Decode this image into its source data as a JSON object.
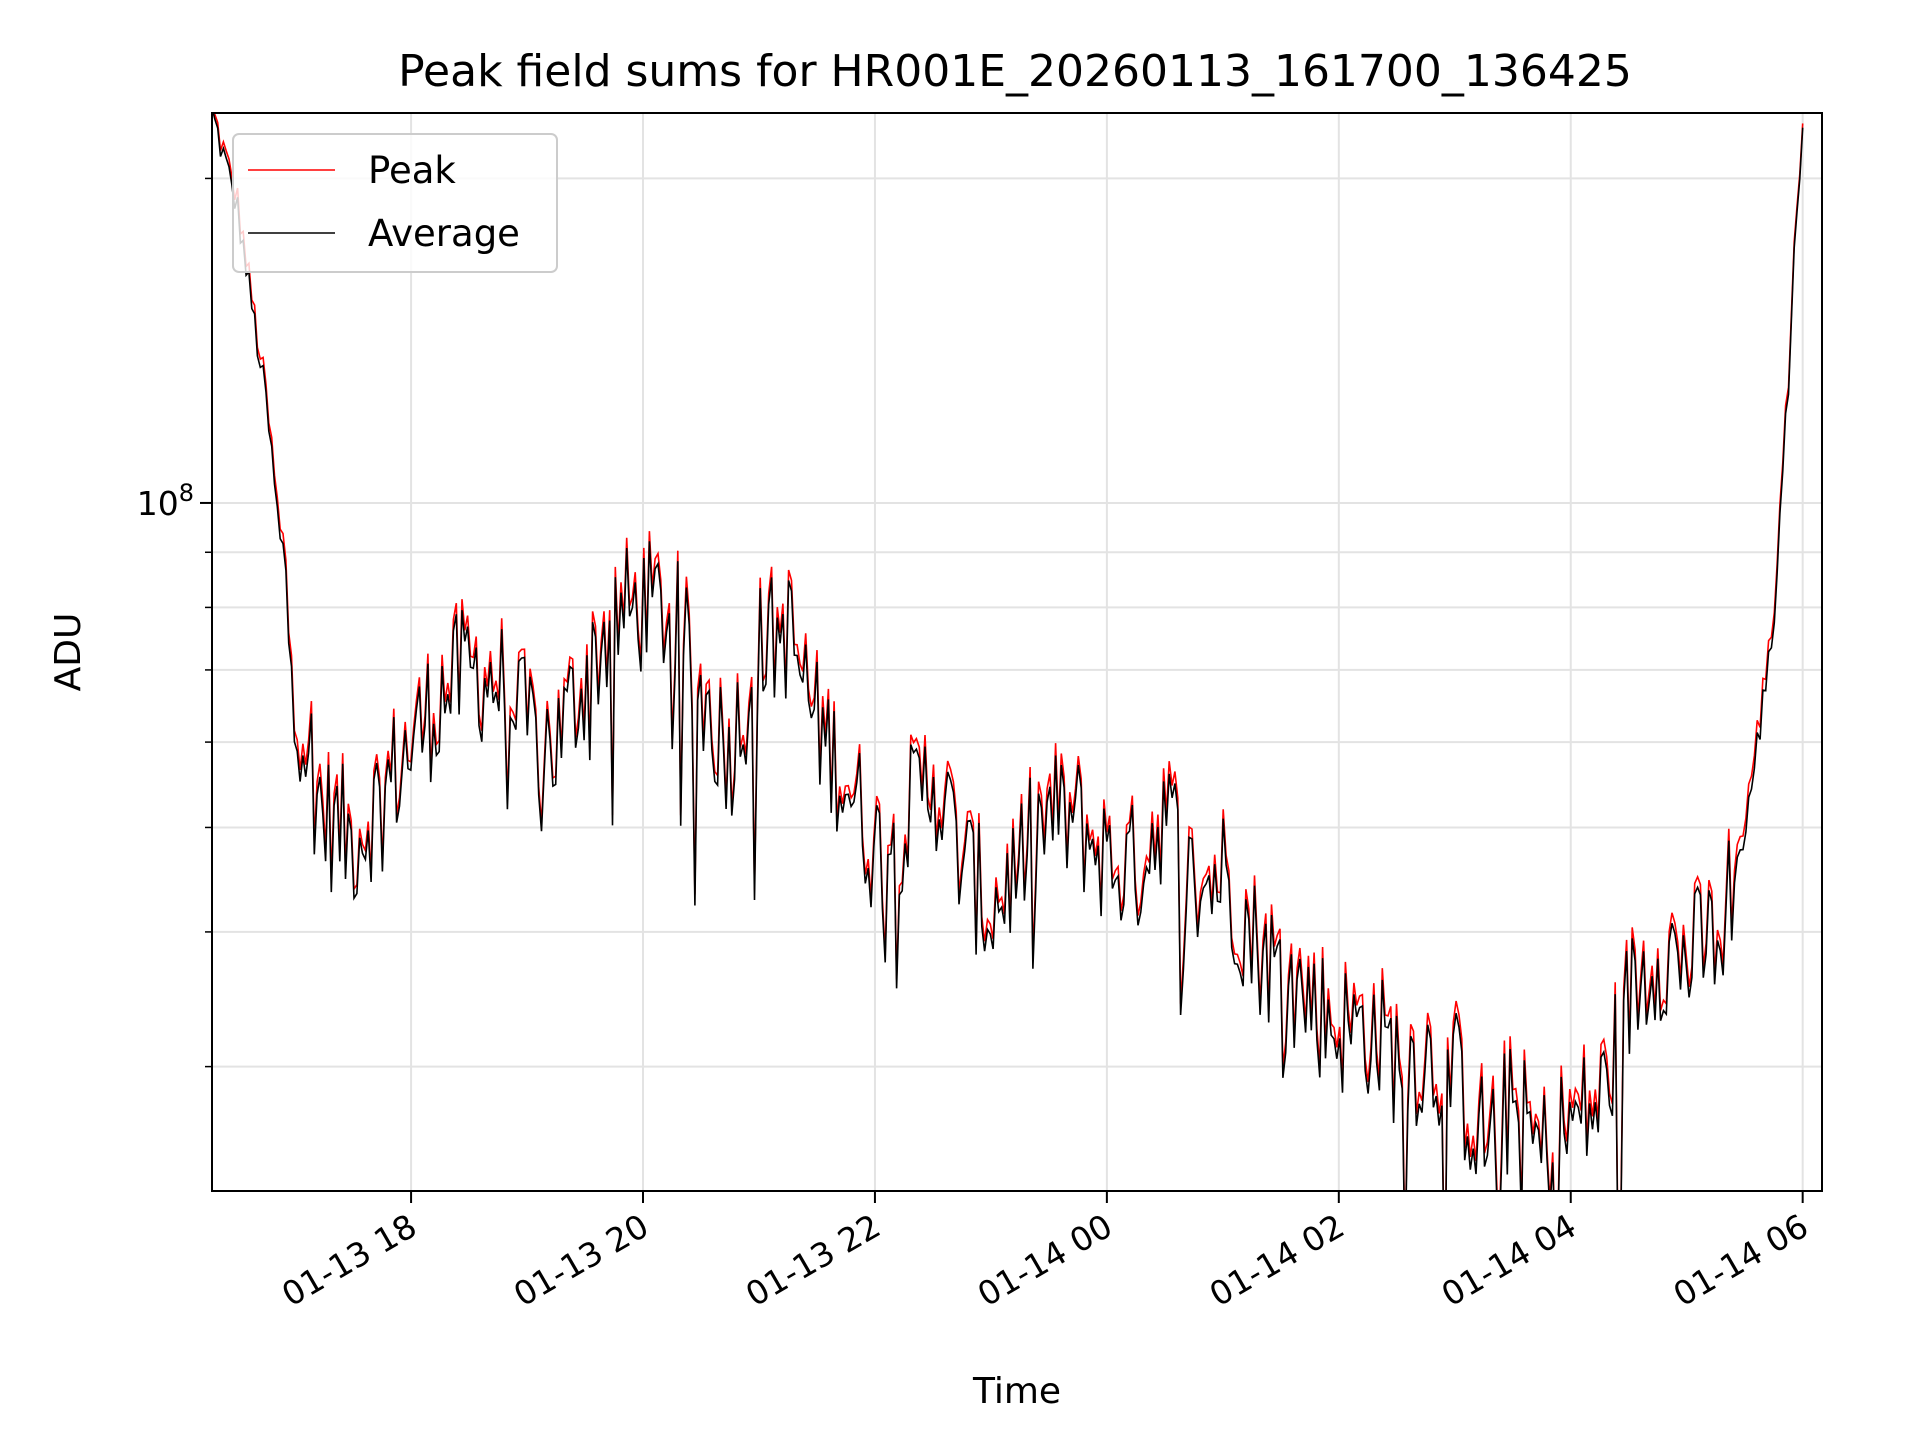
{
  "chart_data": {
    "type": "line",
    "title": "Peak field sums for HR001E_20260113_161700_136425",
    "xlabel": "Time",
    "ylabel": "ADU",
    "x_ticks": [
      "01-13 18",
      "01-13 20",
      "01-13 22",
      "01-14 00",
      "01-14 02",
      "01-14 04",
      "01-14 06"
    ],
    "y_ticks": [
      {
        "base": "10",
        "exp": "8",
        "value": 100000000
      }
    ],
    "y_scale": "log",
    "xlim": [
      "2026-01-13 16:17",
      "2026-01-14 06:10"
    ],
    "ylim": [
      23000000,
      230000000
    ],
    "grid": true,
    "legend_position": "top-left",
    "x": [
      "2026-01-13 16:17",
      "2026-01-13 16:30",
      "2026-01-13 16:45",
      "2026-01-13 17:00",
      "2026-01-13 17:15",
      "2026-01-13 17:30",
      "2026-01-13 17:45",
      "2026-01-13 18:00",
      "2026-01-13 18:15",
      "2026-01-13 18:30",
      "2026-01-13 18:45",
      "2026-01-13 19:00",
      "2026-01-13 19:15",
      "2026-01-13 19:30",
      "2026-01-13 19:45",
      "2026-01-13 20:00",
      "2026-01-13 20:15",
      "2026-01-13 20:30",
      "2026-01-13 20:45",
      "2026-01-13 21:00",
      "2026-01-13 21:15",
      "2026-01-13 21:30",
      "2026-01-13 21:45",
      "2026-01-13 22:00",
      "2026-01-13 22:15",
      "2026-01-13 22:30",
      "2026-01-13 22:45",
      "2026-01-13 23:00",
      "2026-01-13 23:15",
      "2026-01-13 23:30",
      "2026-01-13 23:45",
      "2026-01-14 00:00",
      "2026-01-14 00:15",
      "2026-01-14 00:30",
      "2026-01-14 00:45",
      "2026-01-14 01:00",
      "2026-01-14 01:15",
      "2026-01-14 01:30",
      "2026-01-14 01:45",
      "2026-01-14 02:00",
      "2026-01-14 02:15",
      "2026-01-14 02:30",
      "2026-01-14 02:45",
      "2026-01-14 03:00",
      "2026-01-14 03:15",
      "2026-01-14 03:30",
      "2026-01-14 03:45",
      "2026-01-14 04:00",
      "2026-01-14 04:15",
      "2026-01-14 04:30",
      "2026-01-14 04:45",
      "2026-01-14 05:00",
      "2026-01-14 05:15",
      "2026-01-14 05:30",
      "2026-01-14 05:45",
      "2026-01-14 06:00"
    ],
    "series": [
      {
        "name": "Peak",
        "color": "#ff0000",
        "values": [
          230000000,
          190000000,
          125000000,
          68000000,
          52000000,
          49000000,
          54000000,
          60000000,
          67000000,
          71000000,
          69000000,
          62000000,
          60000000,
          70000000,
          79000000,
          81000000,
          80000000,
          67000000,
          59000000,
          74000000,
          77000000,
          63000000,
          56000000,
          48000000,
          51000000,
          57000000,
          47000000,
          42000000,
          47000000,
          52000000,
          51000000,
          47000000,
          46000000,
          53000000,
          44000000,
          46000000,
          40000000,
          37000000,
          35000000,
          33000000,
          33000000,
          31000000,
          31000000,
          30000000,
          26000000,
          28000000,
          25000000,
          27000000,
          28000000,
          35000000,
          39000000,
          38000000,
          40000000,
          50000000,
          78000000,
          230000000
        ]
      },
      {
        "name": "Average",
        "color": "#000000",
        "values": [
          230000000,
          188000000,
          124000000,
          67000000,
          51000000,
          48500000,
          53500000,
          59500000,
          66000000,
          70000000,
          68000000,
          61500000,
          59500000,
          69000000,
          78000000,
          80000000,
          79000000,
          66000000,
          58500000,
          73000000,
          76000000,
          62000000,
          55500000,
          47500000,
          50500000,
          56000000,
          46500000,
          41500000,
          46500000,
          51000000,
          50500000,
          46500000,
          45500000,
          52000000,
          43500000,
          45500000,
          39500000,
          36500000,
          34500000,
          32500000,
          32500000,
          30500000,
          30500000,
          29500000,
          25500000,
          27500000,
          24800000,
          26500000,
          27500000,
          34500000,
          38500000,
          37500000,
          39500000,
          49000000,
          77000000,
          230000000
        ]
      }
    ]
  }
}
